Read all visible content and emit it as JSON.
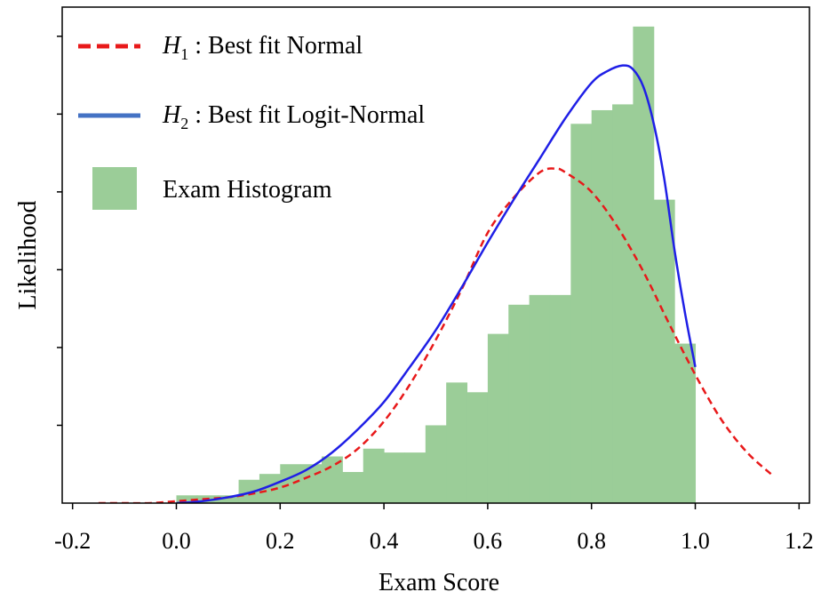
{
  "chart_data": {
    "type": "histogram",
    "xlabel": "Exam Score",
    "ylabel": "Likelihood",
    "xlim": [
      -0.22,
      1.22
    ],
    "ylim": [
      0,
      2.55
    ],
    "x_ticks": [
      -0.2,
      0.0,
      0.2,
      0.4,
      0.6,
      0.8,
      1.0,
      1.2
    ],
    "x_tick_labels": [
      "-0.2",
      "0.0",
      "0.2",
      "0.4",
      "0.6",
      "0.8",
      "1.0",
      "1.2"
    ],
    "y_ticks": [
      0.4,
      0.8,
      1.2,
      1.6,
      2.0,
      2.4
    ],
    "y_tick_labels_visible": false,
    "legend_location": "upper-left",
    "legend": [
      {
        "label_main": "H",
        "label_sub": "1",
        "label_rest": " : Best fit Normal",
        "style": "dashed-line",
        "color": "#e8191a"
      },
      {
        "label_main": "H",
        "label_sub": "2",
        "label_rest": " : Best fit Logit-Normal",
        "style": "solid-line",
        "color": "#4472c4"
      },
      {
        "label_main": "",
        "label_sub": "",
        "label_rest": "Exam Histogram",
        "style": "patch",
        "color": "#9bcd98"
      }
    ],
    "histogram": {
      "name": "Exam Histogram",
      "color": "#9bcd98",
      "bin_edges": [
        0.0,
        0.04,
        0.08,
        0.12,
        0.16,
        0.2,
        0.24,
        0.28,
        0.32,
        0.36,
        0.4,
        0.44,
        0.48,
        0.52,
        0.56,
        0.6,
        0.64,
        0.68,
        0.72,
        0.76,
        0.8,
        0.84,
        0.88,
        0.92,
        0.96,
        1.0
      ],
      "values": [
        0.04,
        0.04,
        0.04,
        0.12,
        0.15,
        0.2,
        0.2,
        0.24,
        0.16,
        0.28,
        0.26,
        0.26,
        0.4,
        0.62,
        0.57,
        0.87,
        1.02,
        1.07,
        1.07,
        1.95,
        2.02,
        2.05,
        2.45,
        1.56,
        0.82
      ]
    },
    "series": [
      {
        "name": "H1 : Best fit Normal",
        "style": "dashed",
        "color": "#e8191a",
        "x": [
          -0.15,
          -0.1,
          -0.05,
          0.0,
          0.05,
          0.1,
          0.15,
          0.2,
          0.25,
          0.3,
          0.35,
          0.4,
          0.45,
          0.5,
          0.55,
          0.6,
          0.65,
          0.7,
          0.73,
          0.75,
          0.8,
          0.85,
          0.9,
          0.95,
          1.0,
          1.05,
          1.1,
          1.15
        ],
        "y": [
          0.0,
          0.0,
          0.0,
          0.01,
          0.02,
          0.03,
          0.05,
          0.08,
          0.13,
          0.19,
          0.28,
          0.42,
          0.61,
          0.84,
          1.1,
          1.39,
          1.57,
          1.7,
          1.72,
          1.7,
          1.6,
          1.42,
          1.19,
          0.92,
          0.66,
          0.43,
          0.26,
          0.14
        ]
      },
      {
        "name": "H2 : Best fit Logit-Normal",
        "style": "solid",
        "color": "#1f1fe6",
        "x": [
          0.0,
          0.05,
          0.1,
          0.15,
          0.2,
          0.25,
          0.3,
          0.35,
          0.4,
          0.45,
          0.5,
          0.55,
          0.6,
          0.65,
          0.7,
          0.75,
          0.8,
          0.83,
          0.86,
          0.88,
          0.9,
          0.92,
          0.94,
          0.96,
          0.98,
          1.0
        ],
        "y": [
          0.0,
          0.01,
          0.03,
          0.06,
          0.11,
          0.17,
          0.26,
          0.38,
          0.52,
          0.7,
          0.89,
          1.11,
          1.34,
          1.56,
          1.77,
          1.98,
          2.16,
          2.22,
          2.25,
          2.23,
          2.14,
          1.95,
          1.67,
          1.3,
          0.98,
          0.7
        ]
      }
    ]
  }
}
